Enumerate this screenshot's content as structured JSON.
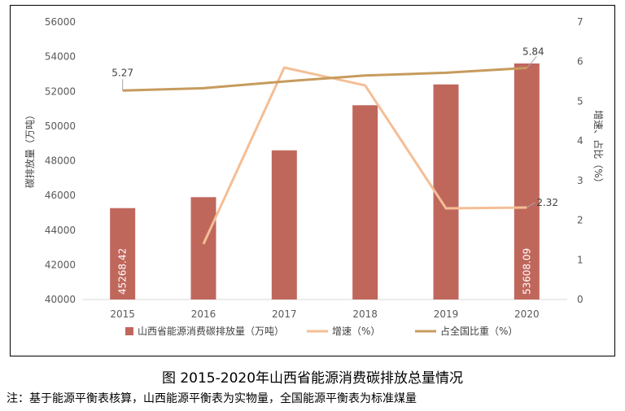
{
  "chart_data": {
    "type": "bar+line",
    "categories": [
      "2015",
      "2016",
      "2017",
      "2018",
      "2019",
      "2020"
    ],
    "series": [
      {
        "name": "山西省能源消费碳排放量（万吨）",
        "kind": "bar",
        "axis": "left",
        "color": "#C0675C",
        "values": [
          45268.42,
          45900,
          48600,
          51200,
          52400,
          53608.09
        ],
        "labels": {
          "0": "45268.42",
          "5": "53608.09"
        }
      },
      {
        "name": "增速（%）",
        "kind": "line",
        "axis": "right",
        "color": "#F4BE96",
        "values": [
          null,
          1.4,
          5.85,
          5.4,
          2.3,
          2.32
        ],
        "labels": {
          "5": "2.32"
        }
      },
      {
        "name": "占全国比重（%）",
        "kind": "line",
        "axis": "right",
        "color": "#C79B5E",
        "values": [
          5.27,
          5.33,
          5.5,
          5.65,
          5.72,
          5.84
        ],
        "labels": {
          "0": "5.27",
          "5": "5.84"
        }
      }
    ],
    "ylabel_left": "碳排放量（万吨）",
    "ylabel_right": "增速、占比（%）",
    "ylim_left": [
      40000,
      56000
    ],
    "yticks_left": [
      "40000",
      "42000",
      "44000",
      "46000",
      "48000",
      "50000",
      "52000",
      "54000",
      "56000"
    ],
    "ylim_right": [
      0,
      7
    ],
    "yticks_right": [
      "0",
      "1",
      "2",
      "3",
      "4",
      "5",
      "6",
      "7"
    ],
    "grid": false,
    "legend_position": "bottom"
  },
  "caption": "图  2015-2020年山西省能源消费碳排放总量情况",
  "note": "注：基于能源平衡表核算，山西能源平衡表为实物量，全国能源平衡表为标准煤量"
}
